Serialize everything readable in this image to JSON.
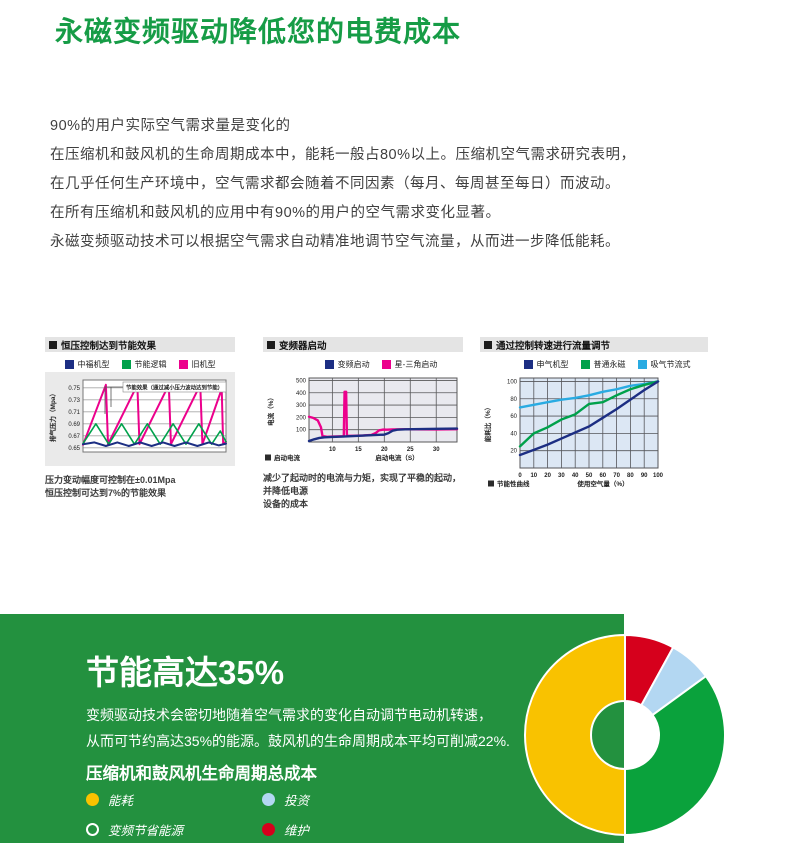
{
  "page": {
    "title": "永磁变频驱动降低您的电费成本",
    "accent_color": "#169c46",
    "intro": [
      "90%的用户实际空气需求量是变化的",
      "在压缩机和鼓风机的生命周期成本中，能耗一般占80%以上。压缩机空气需求研究表明，",
      "在几乎任何生产环境中，空气需求都会随着不同因素（每月、每周甚至每日）而波动。",
      "在所有压缩机和鼓风机的应用中有90%的用户的空气需求变化显著。",
      "永磁变频驱动技术可以根据空气需求自动精准地调节空气流量，从而进一步降低能耗。"
    ]
  },
  "chart_data": [
    {
      "type": "line",
      "title": "恒压控制达到节能效果",
      "ylabel": "排气压力（Mpa）",
      "y_ticks": [
        0.65,
        0.67,
        0.69,
        0.71,
        0.73,
        0.75
      ],
      "ylim": [
        0.643,
        0.763
      ],
      "xlim": [
        0,
        10
      ],
      "grid": "horizontal",
      "annotation": "节能效果（通过减小压力波动达到节能）",
      "captions": [
        "压力变动幅度可控制在±0.01Mpa",
        "恒压控制可达到7%的节能效果"
      ],
      "series": [
        {
          "name": "中福机型",
          "color": "#1c2e83",
          "width": 2,
          "points": [
            [
              0,
              0.656
            ],
            [
              0.8,
              0.659
            ],
            [
              1.6,
              0.653
            ],
            [
              2.4,
              0.659
            ],
            [
              3.2,
              0.653
            ],
            [
              4.0,
              0.659
            ],
            [
              4.8,
              0.653
            ],
            [
              5.6,
              0.659
            ],
            [
              6.4,
              0.653
            ],
            [
              7.2,
              0.659
            ],
            [
              8.0,
              0.653
            ],
            [
              8.8,
              0.659
            ],
            [
              9.5,
              0.654
            ],
            [
              10,
              0.657
            ]
          ]
        },
        {
          "name": "节能逻辑",
          "color": "#00a14b",
          "width": 1.6,
          "points": [
            [
              0,
              0.657
            ],
            [
              0.9,
              0.69
            ],
            [
              1.8,
              0.656
            ],
            [
              2.7,
              0.69
            ],
            [
              3.6,
              0.656
            ],
            [
              4.5,
              0.69
            ],
            [
              5.4,
              0.656
            ],
            [
              6.3,
              0.69
            ],
            [
              7.2,
              0.656
            ],
            [
              8.1,
              0.69
            ],
            [
              9.0,
              0.656
            ],
            [
              9.6,
              0.678
            ],
            [
              10,
              0.66
            ]
          ]
        },
        {
          "name": "旧机型",
          "color": "#ec008c",
          "width": 2,
          "points": [
            [
              0,
              0.655
            ],
            [
              1.6,
              0.755
            ],
            [
              1.75,
              0.656
            ],
            [
              3.8,
              0.755
            ],
            [
              3.95,
              0.656
            ],
            [
              6.0,
              0.755
            ],
            [
              6.15,
              0.656
            ],
            [
              8.2,
              0.755
            ],
            [
              8.35,
              0.656
            ],
            [
              9.7,
              0.748
            ],
            [
              9.8,
              0.657
            ],
            [
              10,
              0.66
            ]
          ]
        }
      ]
    },
    {
      "type": "line",
      "title": "变频器启动",
      "ylabel": "电流（%）",
      "xlabel": "启动电流（S）",
      "sub_legend": "启动电流",
      "y_ticks": [
        100,
        200,
        300,
        400,
        500
      ],
      "x_ticks": [
        10,
        15,
        20,
        25,
        30
      ],
      "ylim": [
        0,
        520
      ],
      "xlim": [
        5.5,
        34
      ],
      "grid": "both",
      "captions": [
        "减少了起动时的电流与力矩，实现了平稳的起动，并降低电源",
        "设备的成本"
      ],
      "series": [
        {
          "name": "变频启动",
          "color": "#1c2e83",
          "width": 2.4,
          "points": [
            [
              5.5,
              8
            ],
            [
              6.5,
              22
            ],
            [
              7.5,
              33
            ],
            [
              8.5,
              38
            ],
            [
              10,
              41
            ],
            [
              12,
              44
            ],
            [
              14,
              48
            ],
            [
              16,
              52
            ],
            [
              17.5,
              55
            ],
            [
              18.5,
              57
            ],
            [
              20,
              60
            ],
            [
              20.8,
              72
            ],
            [
              21.6,
              92
            ],
            [
              22.5,
              100
            ],
            [
              24,
              103
            ],
            [
              27,
              105
            ],
            [
              30,
              107
            ],
            [
              34,
              109
            ]
          ]
        },
        {
          "name": "星-三角启动",
          "color": "#ec008c",
          "width": 2.4,
          "points": [
            [
              5.5,
              205
            ],
            [
              6.3,
              196
            ],
            [
              7.2,
              175
            ],
            [
              7.8,
              120
            ],
            [
              8.1,
              48
            ],
            [
              9,
              42
            ],
            [
              10,
              44
            ],
            [
              12.2,
              47
            ],
            [
              12.35,
              408
            ],
            [
              12.65,
              408
            ],
            [
              12.8,
              50
            ],
            [
              14,
              50
            ],
            [
              16,
              53
            ],
            [
              17.5,
              57
            ],
            [
              18.3,
              72
            ],
            [
              19,
              95
            ],
            [
              19.8,
              101
            ],
            [
              20.5,
              100
            ],
            [
              21.5,
              102
            ],
            [
              23,
              103
            ],
            [
              26,
              103
            ],
            [
              30,
              102
            ],
            [
              34,
              104
            ]
          ]
        }
      ]
    },
    {
      "type": "line",
      "title": "通过控制转速进行流量调节",
      "ylabel": "能耗比（%）",
      "xlabel": "使用空气量（%）",
      "sub_legend": "节能性曲线",
      "y_ticks": [
        20,
        40,
        60,
        80,
        100
      ],
      "x_ticks": [
        0,
        10,
        20,
        30,
        40,
        50,
        60,
        70,
        80,
        90,
        100
      ],
      "ylim": [
        0,
        104
      ],
      "xlim": [
        0,
        100
      ],
      "grid": "both",
      "series": [
        {
          "name": "申气机型",
          "color": "#1c2e83",
          "width": 2.4,
          "points": [
            [
              0,
              15
            ],
            [
              10,
              21
            ],
            [
              20,
              27
            ],
            [
              30,
              34
            ],
            [
              40,
              41
            ],
            [
              50,
              48
            ],
            [
              60,
              58
            ],
            [
              70,
              68
            ],
            [
              80,
              79
            ],
            [
              90,
              90
            ],
            [
              100,
              100
            ]
          ]
        },
        {
          "name": "普通永磁",
          "color": "#00a14b",
          "width": 2.4,
          "points": [
            [
              0,
              25
            ],
            [
              10,
              40
            ],
            [
              20,
              47
            ],
            [
              30,
              56
            ],
            [
              40,
              62
            ],
            [
              50,
              74
            ],
            [
              60,
              76
            ],
            [
              70,
              84
            ],
            [
              80,
              91
            ],
            [
              90,
              96
            ],
            [
              100,
              100
            ]
          ]
        },
        {
          "name": "吸气节流式",
          "color": "#29abe2",
          "width": 2.4,
          "points": [
            [
              0,
              70
            ],
            [
              10,
              73
            ],
            [
              20,
              76
            ],
            [
              30,
              79
            ],
            [
              40,
              81
            ],
            [
              50,
              84
            ],
            [
              60,
              88
            ],
            [
              70,
              91
            ],
            [
              80,
              95
            ],
            [
              90,
              97
            ],
            [
              100,
              100
            ]
          ]
        }
      ]
    },
    {
      "type": "pie",
      "title": "压缩机和鼓风机生命周期总成本",
      "donut": true,
      "inner_radius_ratio": 0.34,
      "start_at_deg_clockwise_from_top": 0,
      "slices": [
        {
          "label": "维护",
          "value": 8,
          "color": "#d6001c"
        },
        {
          "label": "投资",
          "value": 7,
          "color": "#b3d7f2"
        },
        {
          "label": "变频节省能源",
          "value": 35,
          "color": "#0aa23c"
        },
        {
          "label": "能耗",
          "value": 50,
          "color": "#f9c200"
        }
      ]
    }
  ],
  "savings": {
    "panel_color": "#23913f",
    "headline": "节能高达35%",
    "body": [
      "变频驱动技术会密切地随着空气需求的变化自动调节电动机转速，",
      "从而可节约高达35%的能源。鼓风机的生命周期成本平均可削减22%."
    ],
    "subtitle": "压缩机和鼓风机生命周期总成本",
    "legend": [
      {
        "label": "能耗",
        "color": "#f9c200",
        "style": "filled"
      },
      {
        "label": "投资",
        "color": "#b3d7f2",
        "style": "filled"
      },
      {
        "label": "变频节省能源",
        "color": "#ffffff",
        "style": "outlined"
      },
      {
        "label": "维护",
        "color": "#d6001c",
        "style": "filled"
      }
    ]
  }
}
